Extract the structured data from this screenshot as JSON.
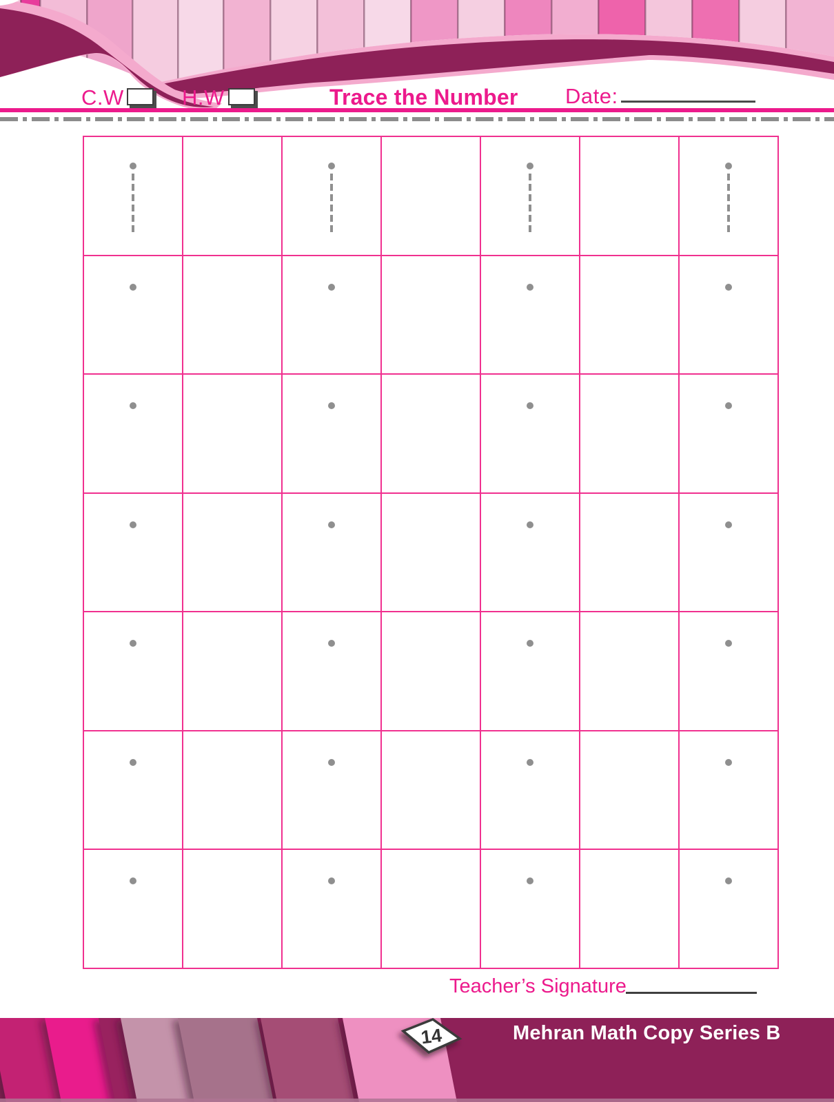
{
  "header": {
    "cw_label": "C.W",
    "hw_label": "H.W",
    "title": "Trace the Number",
    "date_label": "Date:"
  },
  "practice_grid": {
    "rows": 7,
    "columns": 7,
    "trace_column_indexes": [
      0,
      2,
      4,
      6
    ],
    "row_glyphs": [
      "dashed-one",
      "dot",
      "dot",
      "dot",
      "dot",
      "dot",
      "dot"
    ]
  },
  "footer": {
    "teacher_signature_label": "Teacher’s Signature",
    "page_number": "14",
    "series_title": "Mehran Math Copy Series B"
  },
  "icons": {
    "cw_checkbox": "empty-checkbox",
    "hw_checkbox": "empty-checkbox",
    "page_number_badge": "white-diamond",
    "trace_glyph": "dashed-vertical-line-with-start-dot",
    "practice_glyph": "start-dot"
  },
  "colors": {
    "accent": "#ec1a8c",
    "maroon": "#8e2158",
    "grid-line": "#f0308f",
    "glyph-gray": "#8f8f8f",
    "outline-pink": "#f4aacd"
  }
}
